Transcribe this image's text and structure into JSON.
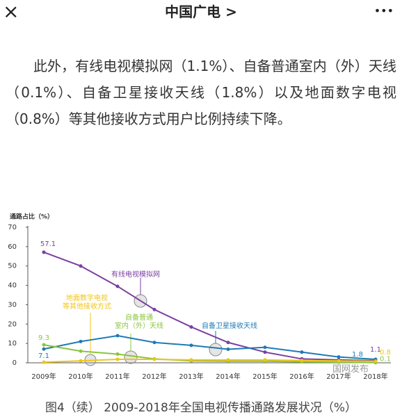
{
  "header": {
    "close": "×",
    "title": "中国广电 >",
    "more": "•••"
  },
  "paragraph": "此外，有线电视模拟网（1.1%）、自备普通室内（外）天线（0.1%）、自备卫星接收天线（1.8%）以及地面数字电视（0.8%）等其他接收方式用户比例持续下降。",
  "chart_data": {
    "type": "line",
    "ylabel": "通路占比（%）",
    "categories": [
      "2009年",
      "2010年",
      "2011年",
      "2012年",
      "2013年",
      "2014年",
      "2015年",
      "2016年",
      "2017年",
      "2018年"
    ],
    "series": [
      {
        "name": "有线电视模拟网",
        "color": "#7b3fa0",
        "values": [
          57.1,
          50,
          39.5,
          27.5,
          18.5,
          10.5,
          5.5,
          2.0,
          1.5,
          1.1
        ]
      },
      {
        "name": "自备卫星接收天线",
        "color": "#1f7ab5",
        "values": [
          7.1,
          11,
          14,
          10.5,
          9,
          7,
          8,
          5.5,
          3,
          1.8
        ]
      },
      {
        "name": "自备普通\n室内（外）天线",
        "color": "#8ac43f",
        "values": [
          9.3,
          6,
          4.5,
          2,
          1,
          0.8,
          0.8,
          0.5,
          0.3,
          0.1
        ]
      },
      {
        "name": "地面数字电视\n等其他接收方式",
        "color": "#f0c419",
        "values": [
          0.3,
          1,
          1.8,
          1.8,
          1.5,
          1.5,
          1.5,
          1.2,
          1.0,
          0.8
        ]
      }
    ],
    "ylim": [
      0,
      70
    ],
    "yticks": [
      0,
      10,
      20,
      30,
      40,
      50,
      60,
      70
    ],
    "watermark": "国网发布"
  },
  "caption": "图4（续） 2009-2018年全国电视传播通路发展状况（%）"
}
